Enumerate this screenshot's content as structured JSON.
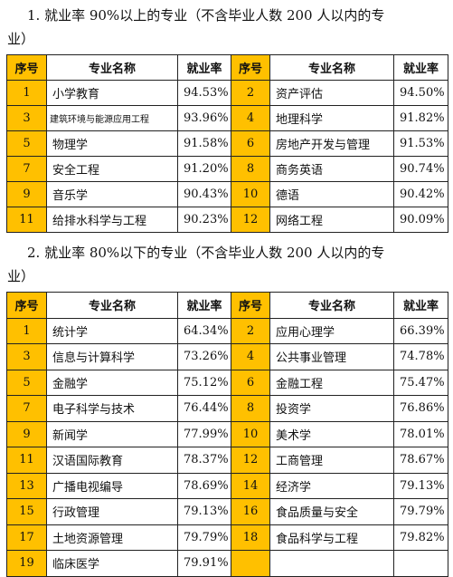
{
  "section1": {
    "heading_line1": "1. 就业率 90%以上的专业（不含毕业人数 200 人以内的专",
    "heading_line2": "业）",
    "headers": [
      "序号",
      "专业名称",
      "就业率",
      "序号",
      "专业名称",
      "就业率"
    ],
    "rows": [
      {
        "n1": "1",
        "name1": "小学教育",
        "rate1": "94.53%",
        "n2": "2",
        "name2": "资产评估",
        "rate2": "94.50%"
      },
      {
        "n1": "3",
        "name1": "建筑环境与能源应用工程",
        "rate1": "93.96%",
        "n2": "4",
        "name2": "地理科学",
        "rate2": "91.82%"
      },
      {
        "n1": "5",
        "name1": "物理学",
        "rate1": "91.58%",
        "n2": "6",
        "name2": "房地产开发与管理",
        "rate2": "91.53%"
      },
      {
        "n1": "7",
        "name1": "安全工程",
        "rate1": "91.20%",
        "n2": "8",
        "name2": "商务英语",
        "rate2": "90.74%"
      },
      {
        "n1": "9",
        "name1": "音乐学",
        "rate1": "90.43%",
        "n2": "10",
        "name2": "德语",
        "rate2": "90.42%"
      },
      {
        "n1": "11",
        "name1": "给排水科学与工程",
        "rate1": "90.23%",
        "n2": "12",
        "name2": "网络工程",
        "rate2": "90.09%"
      }
    ]
  },
  "section2": {
    "heading_line1": "2. 就业率 80%以下的专业（不含毕业人数 200 人以内的专",
    "heading_line2": "业）",
    "headers": [
      "序号",
      "专业名称",
      "就业率",
      "序号",
      "专业名称",
      "就业率"
    ],
    "rows": [
      {
        "n1": "1",
        "name1": "统计学",
        "rate1": "64.34%",
        "n2": "2",
        "name2": "应用心理学",
        "rate2": "66.39%"
      },
      {
        "n1": "3",
        "name1": "信息与计算科学",
        "rate1": "73.26%",
        "n2": "4",
        "name2": "公共事业管理",
        "rate2": "74.78%"
      },
      {
        "n1": "5",
        "name1": "金融学",
        "rate1": "75.12%",
        "n2": "6",
        "name2": "金融工程",
        "rate2": "75.47%"
      },
      {
        "n1": "7",
        "name1": "电子科学与技术",
        "rate1": "76.44%",
        "n2": "8",
        "name2": "投资学",
        "rate2": "76.86%"
      },
      {
        "n1": "9",
        "name1": "新闻学",
        "rate1": "77.99%",
        "n2": "10",
        "name2": "美术学",
        "rate2": "78.01%"
      },
      {
        "n1": "11",
        "name1": "汉语国际教育",
        "rate1": "78.37%",
        "n2": "12",
        "name2": "工商管理",
        "rate2": "78.67%"
      },
      {
        "n1": "13",
        "name1": "广播电视编导",
        "rate1": "78.69%",
        "n2": "14",
        "name2": "经济学",
        "rate2": "79.13%"
      },
      {
        "n1": "15",
        "name1": "行政管理",
        "rate1": "79.13%",
        "n2": "16",
        "name2": "食品质量与安全",
        "rate2": "79.79%"
      },
      {
        "n1": "17",
        "name1": "土地资源管理",
        "rate1": "79.79%",
        "n2": "18",
        "name2": "食品科学与工程",
        "rate2": "79.82%"
      },
      {
        "n1": "19",
        "name1": "临床医学",
        "rate1": "79.91%",
        "n2": "",
        "name2": "",
        "rate2": ""
      }
    ]
  },
  "colors": {
    "index_highlight": "#ffc000",
    "border": "#222222"
  }
}
